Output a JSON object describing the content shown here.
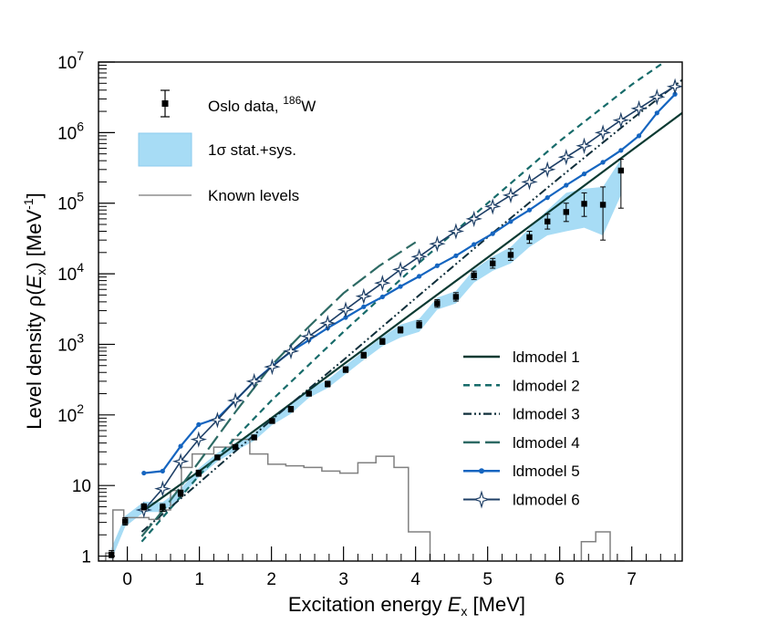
{
  "chart_data": {
    "type": "line",
    "title": "",
    "xlabel_main": "Excitation energy ",
    "xlabel_var": "E",
    "xlabel_sub": "x",
    "xlabel_unit": " [MeV]",
    "ylabel_main": "Level density ρ(",
    "ylabel_var": "E",
    "ylabel_sub": "x",
    "ylabel_unit": ") [MeV",
    "ylabel_sup": "-1",
    "ylabel_end": "]",
    "xlim": [
      -0.4,
      7.7
    ],
    "ylim": [
      0.85,
      10000000
    ],
    "yscale": "log",
    "x_ticks": [
      {
        "v": 0,
        "label": "0"
      },
      {
        "v": 1,
        "label": "1"
      },
      {
        "v": 2,
        "label": "2"
      },
      {
        "v": 3,
        "label": "3"
      },
      {
        "v": 4,
        "label": "4"
      },
      {
        "v": 5,
        "label": "5"
      },
      {
        "v": 6,
        "label": "6"
      },
      {
        "v": 7,
        "label": "7"
      }
    ],
    "y_ticks": [
      {
        "v": 1,
        "label": "1"
      },
      {
        "v": 10,
        "label": "10"
      },
      {
        "v": 100,
        "base": "10",
        "exp": "2"
      },
      {
        "v": 1000,
        "base": "10",
        "exp": "3"
      },
      {
        "v": 10000,
        "base": "10",
        "exp": "4"
      },
      {
        "v": 100000,
        "base": "10",
        "exp": "5"
      },
      {
        "v": 1000000,
        "base": "10",
        "exp": "6"
      },
      {
        "v": 10000000,
        "base": "10",
        "exp": "7"
      }
    ],
    "legend_top": {
      "oslo_label": "Oslo data, ",
      "oslo_sup": "186",
      "oslo_after": "W",
      "band_label": "1σ stat.+sys.",
      "known_label": "Known levels"
    },
    "oslo_data": [
      {
        "x": -0.22,
        "y": 1.05,
        "lo": 0.95,
        "hi": 1.2
      },
      {
        "x": -0.03,
        "y": 3.1,
        "lo": 2.75,
        "hi": 3.5
      },
      {
        "x": 0.23,
        "y": 5.0,
        "lo": 4.5,
        "hi": 5.5
      },
      {
        "x": 0.49,
        "y": 4.9,
        "lo": 4.3,
        "hi": 5.5
      },
      {
        "x": 0.74,
        "y": 7.8,
        "lo": 7.0,
        "hi": 8.6
      },
      {
        "x": 0.99,
        "y": 15,
        "lo": 13.5,
        "hi": 16.5
      },
      {
        "x": 1.25,
        "y": 25,
        "lo": 23,
        "hi": 27
      },
      {
        "x": 1.5,
        "y": 35,
        "lo": 32,
        "hi": 38
      },
      {
        "x": 1.76,
        "y": 48,
        "lo": 44,
        "hi": 52
      },
      {
        "x": 2.01,
        "y": 82,
        "lo": 75,
        "hi": 89
      },
      {
        "x": 2.27,
        "y": 120,
        "lo": 110,
        "hi": 132
      },
      {
        "x": 2.52,
        "y": 200,
        "lo": 183,
        "hi": 218
      },
      {
        "x": 2.78,
        "y": 275,
        "lo": 250,
        "hi": 300
      },
      {
        "x": 3.03,
        "y": 440,
        "lo": 400,
        "hi": 480
      },
      {
        "x": 3.28,
        "y": 700,
        "lo": 640,
        "hi": 770
      },
      {
        "x": 3.54,
        "y": 1100,
        "lo": 1000,
        "hi": 1210
      },
      {
        "x": 3.79,
        "y": 1600,
        "lo": 1450,
        "hi": 1770
      },
      {
        "x": 4.05,
        "y": 1900,
        "lo": 1700,
        "hi": 2150
      },
      {
        "x": 4.3,
        "y": 3800,
        "lo": 3350,
        "hi": 4300
      },
      {
        "x": 4.56,
        "y": 4700,
        "lo": 4100,
        "hi": 5400
      },
      {
        "x": 4.81,
        "y": 9500,
        "lo": 8300,
        "hi": 10900
      },
      {
        "x": 5.07,
        "y": 14000,
        "lo": 12000,
        "hi": 16500
      },
      {
        "x": 5.32,
        "y": 18500,
        "lo": 15500,
        "hi": 22500
      },
      {
        "x": 5.58,
        "y": 33000,
        "lo": 27000,
        "hi": 40000
      },
      {
        "x": 5.83,
        "y": 55000,
        "lo": 43000,
        "hi": 70000
      },
      {
        "x": 6.09,
        "y": 75000,
        "lo": 55000,
        "hi": 100000
      },
      {
        "x": 6.34,
        "y": 98000,
        "lo": 65000,
        "hi": 140000
      },
      {
        "x": 6.6,
        "y": 95000,
        "lo": 30000,
        "hi": 170000
      },
      {
        "x": 6.85,
        "y": 290000,
        "lo": 85000,
        "hi": 420000
      }
    ],
    "band": {
      "x": [
        -0.22,
        -0.03,
        0.23,
        0.49,
        0.74,
        0.99,
        1.25,
        1.5,
        1.76,
        2.01,
        2.27,
        2.52,
        2.78,
        3.03,
        3.28,
        3.54,
        3.79,
        4.05,
        4.3,
        4.56,
        4.81,
        5.07,
        5.32,
        5.58,
        5.83,
        6.09,
        6.34,
        6.6,
        6.85
      ],
      "lo": [
        0.88,
        2.6,
        4.2,
        4.2,
        6.8,
        13,
        22,
        31,
        43,
        72,
        104,
        175,
        240,
        380,
        600,
        940,
        1250,
        1500,
        3100,
        3800,
        7500,
        11000,
        14000,
        24000,
        35000,
        40000,
        45000,
        35000,
        130000
      ],
      "hi": [
        1.3,
        3.7,
        5.9,
        5.8,
        9.0,
        17.5,
        29,
        40,
        55,
        94,
        138,
        230,
        315,
        505,
        800,
        1280,
        1900,
        2300,
        4600,
        5700,
        11500,
        17500,
        24000,
        44000,
        80000,
        140000,
        160000,
        170000,
        420000
      ]
    },
    "known_levels_steps": [
      {
        "x0": -0.4,
        "x1": -0.3,
        "y": 0.85
      },
      {
        "x0": -0.3,
        "x1": -0.2,
        "y": 1.1
      },
      {
        "x0": -0.2,
        "x1": -0.05,
        "y": 4.5
      },
      {
        "x0": -0.05,
        "x1": 0.1,
        "y": 3.5
      },
      {
        "x0": 0.1,
        "x1": 0.3,
        "y": 3.5
      },
      {
        "x0": 0.3,
        "x1": 0.45,
        "y": 3.3
      },
      {
        "x0": 0.45,
        "x1": 0.6,
        "y": 4.5
      },
      {
        "x0": 0.6,
        "x1": 0.75,
        "y": 8.5
      },
      {
        "x0": 0.75,
        "x1": 0.9,
        "y": 18
      },
      {
        "x0": 0.9,
        "x1": 1.2,
        "y": 28
      },
      {
        "x0": 1.2,
        "x1": 1.45,
        "y": 35
      },
      {
        "x0": 1.45,
        "x1": 1.7,
        "y": 45
      },
      {
        "x0": 1.7,
        "x1": 1.95,
        "y": 28
      },
      {
        "x0": 1.95,
        "x1": 2.2,
        "y": 20
      },
      {
        "x0": 2.2,
        "x1": 2.45,
        "y": 19
      },
      {
        "x0": 2.45,
        "x1": 2.7,
        "y": 18
      },
      {
        "x0": 2.7,
        "x1": 2.95,
        "y": 16
      },
      {
        "x0": 2.95,
        "x1": 3.2,
        "y": 15
      },
      {
        "x0": 3.2,
        "x1": 3.45,
        "y": 21
      },
      {
        "x0": 3.45,
        "x1": 3.7,
        "y": 26
      },
      {
        "x0": 3.7,
        "x1": 3.9,
        "y": 18
      },
      {
        "x0": 3.9,
        "x1": 4.2,
        "y": 2.2
      },
      {
        "x0": 4.2,
        "x1": 4.4,
        "y": 0.85
      },
      {
        "x0": 6.3,
        "x1": 6.5,
        "y": 1.6
      },
      {
        "x0": 6.5,
        "x1": 6.7,
        "y": 2.2
      },
      {
        "x0": 6.7,
        "x1": 6.9,
        "y": 0.85
      }
    ],
    "series": [
      {
        "name": "ldmodel 1",
        "color": "#0b3a32",
        "dash": "",
        "marker": "none",
        "width": 2.2,
        "x": [
          0.2,
          1.0,
          2.0,
          3.0,
          4.0,
          5.0,
          6.0,
          7.0,
          7.7
        ],
        "y": [
          4.2,
          16,
          90,
          520,
          3000,
          17000,
          98000,
          560000,
          1900000
        ]
      },
      {
        "name": "ldmodel 2",
        "color": "#176b6a",
        "dash": "7,5",
        "marker": "none",
        "width": 2.2,
        "x": [
          0.2,
          1.0,
          2.0,
          3.0,
          4.0,
          5.0,
          6.0,
          7.0,
          7.7
        ],
        "y": [
          1.6,
          14,
          160,
          1500,
          13000,
          100000,
          760000,
          4800000,
          15000000
        ]
      },
      {
        "name": "ldmodel 3",
        "color": "#0f2e3a",
        "dash": "9,3,2,3,2,3",
        "marker": "none",
        "width": 2.0,
        "x": [
          0.2,
          1.0,
          2.0,
          3.0,
          4.0,
          5.0,
          6.0,
          7.0,
          7.7
        ],
        "y": [
          2.2,
          11,
          85,
          600,
          4500,
          33000,
          230000,
          1550000,
          5600000
        ]
      },
      {
        "name": "ldmodel 4",
        "color": "#2d6a64",
        "dash": "18,6",
        "marker": "none",
        "width": 2.2,
        "x": [
          0.2,
          0.5,
          1.0,
          1.5,
          2.0,
          2.5,
          3.0,
          3.5,
          4.0
        ],
        "y": [
          1.9,
          4.5,
          22,
          110,
          500,
          1700,
          5300,
          13000,
          28000
        ]
      },
      {
        "name": "ldmodel 5",
        "color": "#1565c0",
        "dash": "",
        "marker": "dot",
        "width": 2.2,
        "x": [
          0.23,
          0.49,
          0.74,
          0.99,
          1.25,
          1.5,
          1.76,
          2.01,
          2.27,
          2.52,
          2.78,
          3.03,
          3.28,
          3.54,
          3.79,
          4.05,
          4.3,
          4.56,
          4.81,
          5.07,
          5.32,
          5.58,
          5.83,
          6.09,
          6.34,
          6.6,
          6.85,
          7.1,
          7.35,
          7.6
        ],
        "y": [
          15,
          16,
          36,
          73,
          90,
          160,
          300,
          490,
          790,
          1150,
          1700,
          2400,
          3400,
          4700,
          6600,
          9200,
          13000,
          18000,
          26000,
          37000,
          55000,
          80000,
          120000,
          180000,
          260000,
          380000,
          560000,
          900000,
          1900000,
          3500000
        ]
      },
      {
        "name": "ldmodel 6",
        "color": "#1e3f66",
        "dash": "",
        "marker": "star",
        "width": 1.6,
        "x": [
          0.23,
          0.49,
          0.74,
          0.99,
          1.25,
          1.5,
          1.76,
          2.01,
          2.27,
          2.52,
          2.78,
          3.03,
          3.28,
          3.54,
          3.79,
          4.05,
          4.3,
          4.56,
          4.81,
          5.07,
          5.32,
          5.58,
          5.83,
          6.09,
          6.34,
          6.6,
          6.85,
          7.1,
          7.35,
          7.6
        ],
        "y": [
          4.5,
          9,
          22,
          45,
          85,
          160,
          300,
          480,
          800,
          1300,
          2000,
          3100,
          4800,
          7400,
          11500,
          17500,
          26500,
          40000,
          60000,
          90000,
          130000,
          200000,
          300000,
          450000,
          650000,
          1000000,
          1500000,
          2200000,
          3200000,
          4500000
        ]
      }
    ]
  }
}
